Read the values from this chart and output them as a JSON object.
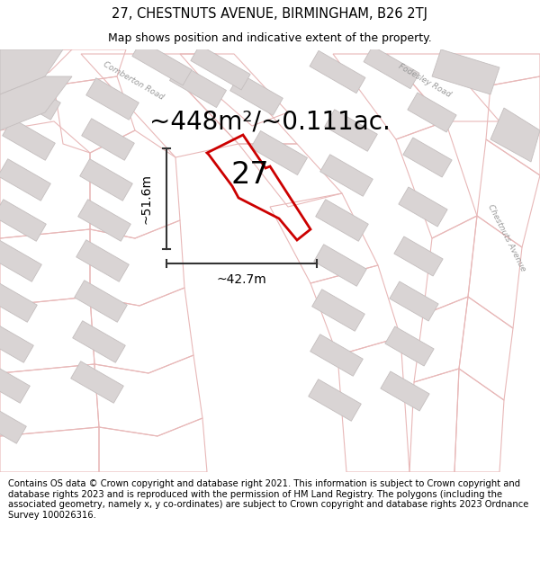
{
  "title_line1": "27, CHESTNUTS AVENUE, BIRMINGHAM, B26 2TJ",
  "title_line2": "Map shows position and indicative extent of the property.",
  "area_label": "~448m²/~0.111ac.",
  "number_label": "27",
  "dim_width": "~42.7m",
  "dim_height": "~51.6m",
  "footer_text": "Contains OS data © Crown copyright and database right 2021. This information is subject to Crown copyright and database rights 2023 and is reproduced with the permission of HM Land Registry. The polygons (including the associated geometry, namely x, y co-ordinates) are subject to Crown copyright and database rights 2023 Ordnance Survey 100026316.",
  "bg_color": "#f8f8f8",
  "map_bg": "#f2f0f0",
  "building_fill": "#d9d4d4",
  "building_edge": "#c4bebe",
  "road_outline_color": "#e8b8b8",
  "road_fill_color": "#f0e8e8",
  "property_color": "#cc0000",
  "dim_color": "#333333",
  "title_fontsize": 10.5,
  "subtitle_fontsize": 9,
  "area_fontsize": 20,
  "number_fontsize": 24,
  "dim_fontsize": 10,
  "footer_fontsize": 7.2,
  "road_label_fontsize": 6.5,
  "road_label_color": "#999999"
}
